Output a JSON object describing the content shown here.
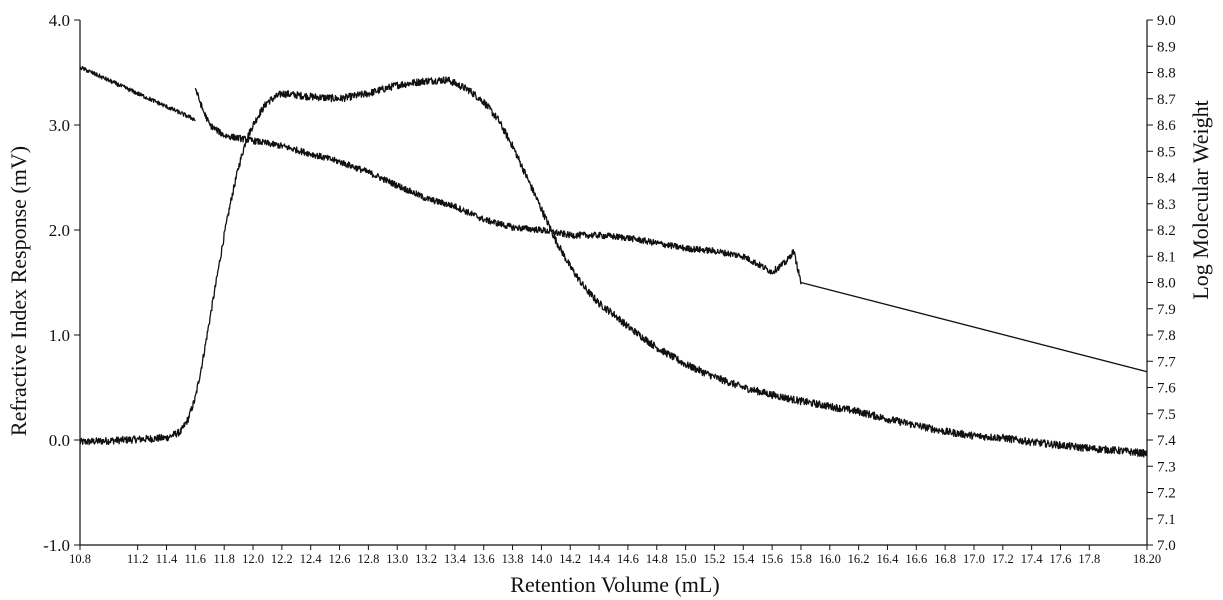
{
  "chart_data": {
    "type": "line",
    "title": "",
    "xlabel": "Retention Volume (mL)",
    "ylabel_left": "Refractive Index Response (mV)",
    "ylabel_right": "Log Molecular Weight",
    "xlim": [
      10.8,
      18.2
    ],
    "ylim_left": [
      -1.0,
      4.0
    ],
    "ylim_right": [
      7.0,
      9.0
    ],
    "grid": false,
    "legend": "none",
    "x_tick_labels": [
      "10.8",
      "11.2",
      "11.4",
      "11.6",
      "11.8",
      "12.0",
      "12.2",
      "12.4",
      "12.6",
      "12.8",
      "13.0",
      "13.2",
      "13.4",
      "13.6",
      "13.8",
      "14.0",
      "14.2",
      "14.4",
      "14.6",
      "14.8",
      "15.0",
      "15.2",
      "15.4",
      "15.6",
      "15.8",
      "16.0",
      "16.2",
      "16.4",
      "16.6",
      "16.8",
      "17.0",
      "17.2",
      "17.4",
      "17.6",
      "17.8",
      "18.20"
    ],
    "x_tick_values": [
      10.8,
      11.2,
      11.4,
      11.6,
      11.8,
      12.0,
      12.2,
      12.4,
      12.6,
      12.8,
      13.0,
      13.2,
      13.4,
      13.6,
      13.8,
      14.0,
      14.2,
      14.4,
      14.6,
      14.8,
      15.0,
      15.2,
      15.4,
      15.6,
      15.8,
      16.0,
      16.2,
      16.4,
      16.6,
      16.8,
      17.0,
      17.2,
      17.4,
      17.6,
      17.8,
      18.2
    ],
    "y_left_ticks": [
      "-1.0",
      "0.0",
      "1.0",
      "2.0",
      "3.0",
      "4.0"
    ],
    "y_left_tick_values": [
      -1.0,
      0.0,
      1.0,
      2.0,
      3.0,
      4.0
    ],
    "y_right_ticks": [
      "7.0",
      "7.1",
      "7.2",
      "7.3",
      "7.4",
      "7.5",
      "7.6",
      "7.7",
      "7.8",
      "7.9",
      "8.0",
      "8.1",
      "8.2",
      "8.3",
      "8.4",
      "8.5",
      "8.6",
      "8.7",
      "8.8",
      "8.9",
      "9.0"
    ],
    "y_right_tick_values": [
      7.0,
      7.1,
      7.2,
      7.3,
      7.4,
      7.5,
      7.6,
      7.7,
      7.8,
      7.9,
      8.0,
      8.1,
      8.2,
      8.3,
      8.4,
      8.5,
      8.6,
      8.7,
      8.8,
      8.9,
      9.0
    ],
    "series": [
      {
        "axis": "left",
        "color": "#111111",
        "noise": 0.035,
        "x": [
          10.8,
          11.1,
          11.4,
          11.5,
          11.55,
          11.6,
          11.65,
          11.7,
          11.75,
          11.8,
          11.85,
          11.9,
          11.95,
          12.0,
          12.05,
          12.1,
          12.2,
          12.4,
          12.6,
          12.8,
          13.0,
          13.2,
          13.35,
          13.5,
          13.6,
          13.7,
          13.8,
          13.9,
          14.0,
          14.1,
          14.2,
          14.3,
          14.4,
          14.5,
          14.6,
          14.8,
          15.0,
          15.2,
          15.4,
          15.6,
          15.8,
          16.0,
          16.2,
          16.4,
          16.6,
          16.8,
          17.0,
          17.2,
          17.4,
          17.6,
          17.8,
          18.0,
          18.2
        ],
        "y": [
          -0.02,
          0.0,
          0.02,
          0.08,
          0.2,
          0.4,
          0.75,
          1.15,
          1.55,
          1.95,
          2.3,
          2.6,
          2.85,
          3.0,
          3.12,
          3.22,
          3.3,
          3.27,
          3.25,
          3.3,
          3.38,
          3.42,
          3.43,
          3.33,
          3.22,
          3.05,
          2.8,
          2.5,
          2.2,
          1.9,
          1.65,
          1.45,
          1.3,
          1.2,
          1.08,
          0.88,
          0.72,
          0.6,
          0.5,
          0.43,
          0.37,
          0.32,
          0.27,
          0.2,
          0.14,
          0.08,
          0.04,
          0.02,
          -0.02,
          -0.05,
          -0.08,
          -0.1,
          -0.13
        ]
      },
      {
        "axis": "right",
        "color": "#111111",
        "noise": 0.008,
        "x": [
          10.8,
          11.6
        ],
        "y": [
          8.82,
          8.62
        ]
      },
      {
        "axis": "right",
        "color": "#111111",
        "noise": 0.012,
        "x": [
          11.6,
          11.65,
          11.7,
          11.8,
          12.0,
          12.2,
          12.4,
          12.6,
          12.8,
          13.0,
          13.2,
          13.4,
          13.6,
          13.8,
          14.0,
          14.2,
          14.4,
          14.6,
          14.8,
          15.0,
          15.2,
          15.4,
          15.5,
          15.6,
          15.7,
          15.75,
          15.8
        ],
        "y": [
          8.74,
          8.66,
          8.6,
          8.56,
          8.54,
          8.52,
          8.49,
          8.46,
          8.42,
          8.37,
          8.32,
          8.29,
          8.24,
          8.21,
          8.2,
          8.18,
          8.18,
          8.17,
          8.15,
          8.13,
          8.12,
          8.1,
          8.07,
          8.04,
          8.08,
          8.12,
          8.0
        ]
      },
      {
        "axis": "right",
        "color": "#111111",
        "noise": 0.0,
        "x": [
          15.8,
          18.2
        ],
        "y": [
          8.0,
          7.66
        ]
      }
    ]
  }
}
